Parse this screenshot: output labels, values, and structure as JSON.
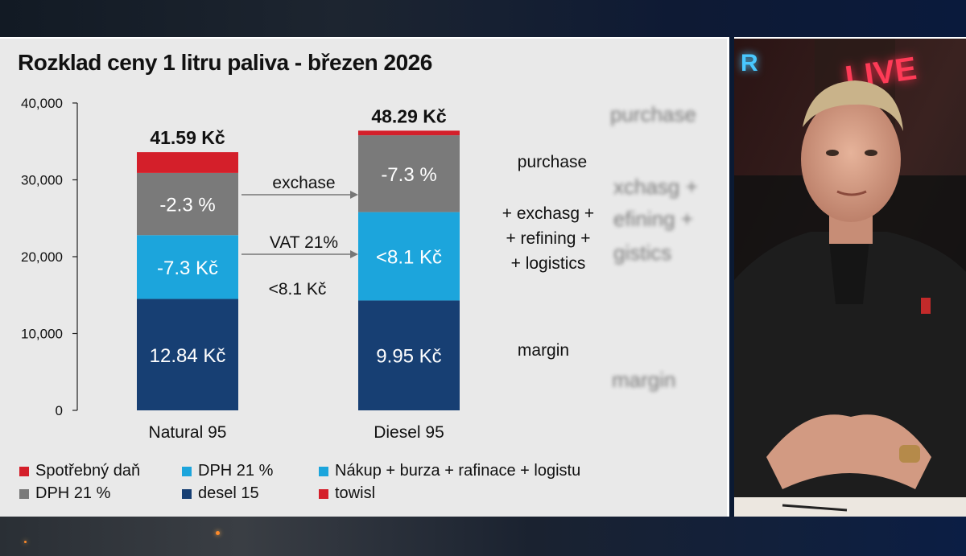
{
  "chart_data": {
    "type": "bar",
    "stacked": true,
    "title": "Rozklad ceny 1 litru paliva - březen 2026",
    "categories": [
      "Natural 95",
      "Diesel 95"
    ],
    "ylim": [
      0,
      40000
    ],
    "yticks": [
      "0",
      "10,000",
      "20,000",
      "30,000",
      "40,000"
    ],
    "ytick_values": [
      0,
      10000,
      20000,
      30000,
      40000
    ],
    "totals": [
      "41.59 Kč",
      "48.29 Kč"
    ],
    "series": [
      {
        "color": "#173f73",
        "values": [
          14500,
          14300
        ],
        "labels": [
          "12.84 Kč",
          "9.95 Kč"
        ]
      },
      {
        "color": "#1ca5dc",
        "values": [
          8300,
          11500
        ],
        "labels": [
          "-7.3 Kč",
          "<8.1 Kč"
        ]
      },
      {
        "color": "#7a7a7a",
        "values": [
          8100,
          10000
        ],
        "labels": [
          "-2.3 %",
          "-7.3 %"
        ]
      },
      {
        "color": "#d41f2a",
        "values": [
          2700,
          600
        ],
        "labels": [
          "",
          ""
        ]
      }
    ],
    "annotations": {
      "arrow1": "exchase",
      "arrow2": "VAT 21%",
      "below_arrow": "<8.1 Kč",
      "right_top": "purchase",
      "right_mid": [
        "+ exchasg +",
        "+ refining +",
        "+ logistics"
      ],
      "right_bottom": "margin"
    },
    "legend": [
      {
        "label": "Spotřebný daň",
        "color": "#d41f2a"
      },
      {
        "label": "DPH 21 %",
        "color": "#1ca5dc"
      },
      {
        "label": "Nákup + burza + rafinace + logistu",
        "color": "#1ca5dc"
      },
      {
        "label": "DPH 21 %",
        "color": "#7a7a7a"
      },
      {
        "label": "desel 15",
        "color": "#173f73"
      },
      {
        "label": "towisl",
        "color": "#d41f2a"
      }
    ],
    "grid": false,
    "legend_position": "bottom"
  },
  "ghost_text": {
    "purchase": "purchase",
    "middle": [
      "xchasg +",
      "efining +",
      "gistics"
    ],
    "margin": "margin"
  },
  "video": {
    "neon_sign": "LIVE",
    "neon_left": "R"
  }
}
